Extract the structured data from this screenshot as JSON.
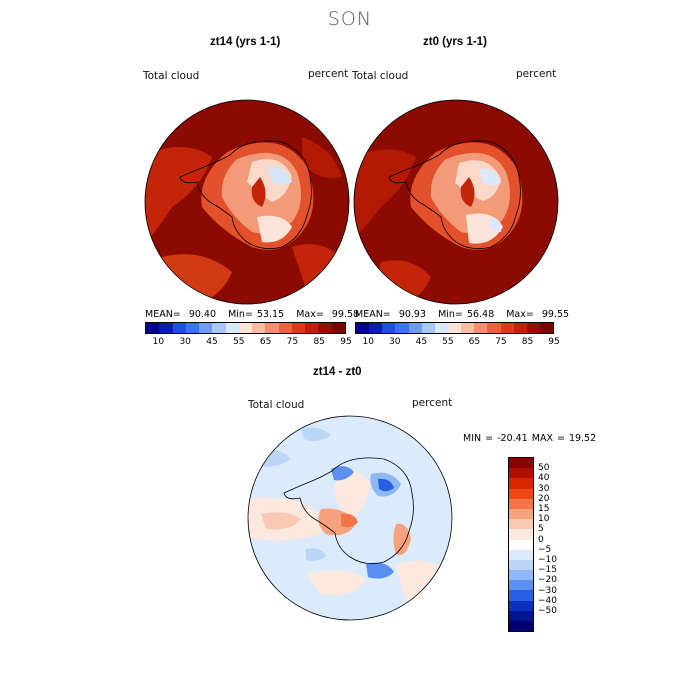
{
  "figure_title": "SON",
  "panels": [
    {
      "title": "zt14 (yrs 1-1)",
      "variable": "Total cloud",
      "units": "percent",
      "stats": {
        "mean_label": "MEAN=",
        "mean": "90.40",
        "min_label": "Min=",
        "min": "53.15",
        "max_label": "Max=",
        "max": "99.58"
      },
      "colorbar": {
        "ticks": [
          "10",
          "30",
          "45",
          "55",
          "65",
          "75",
          "85",
          "95"
        ]
      }
    },
    {
      "title": "zt0 (yrs 1-1)",
      "variable": "Total cloud",
      "units": "percent",
      "stats": {
        "mean_label": "MEAN=",
        "mean": "90.93",
        "min_label": "Min=",
        "min": "56.48",
        "max_label": "Max=",
        "max": "99.55"
      },
      "colorbar": {
        "ticks": [
          "10",
          "30",
          "45",
          "55",
          "65",
          "75",
          "85",
          "95"
        ]
      }
    }
  ],
  "diff_panel": {
    "title": "zt14 - zt0",
    "variable": "Total cloud",
    "units": "percent",
    "stats_text": "MIN = -20.41 MAX =  19.52",
    "colorbar": {
      "ticks": [
        "50",
        "40",
        "30",
        "20",
        "15",
        "10",
        "5",
        "0",
        "−5",
        "−10",
        "−15",
        "−20",
        "−30",
        "−40",
        "−50"
      ]
    }
  },
  "colors": {
    "abs_scale": [
      "#00008b",
      "#0a1fb0",
      "#1f4fe0",
      "#3a74f0",
      "#6e9cf5",
      "#a9c8f8",
      "#dbe9fb",
      "#fbe3d6",
      "#f6bca4",
      "#f18f6e",
      "#e9613f",
      "#dd3a17",
      "#c11f06",
      "#9a0d02",
      "#7a0300"
    ],
    "diff_scale": [
      "#8b0000",
      "#b00e00",
      "#d82600",
      "#ef4614",
      "#f4744a",
      "#f6a27f",
      "#fac9b2",
      "#fbe8de",
      "#ffffff",
      "#dcebfb",
      "#bcd6f8",
      "#8fb7f5",
      "#5b8ff0",
      "#2860e0",
      "#0a30c0",
      "#00148f",
      "#000070"
    ],
    "land_outline": "#000000"
  }
}
